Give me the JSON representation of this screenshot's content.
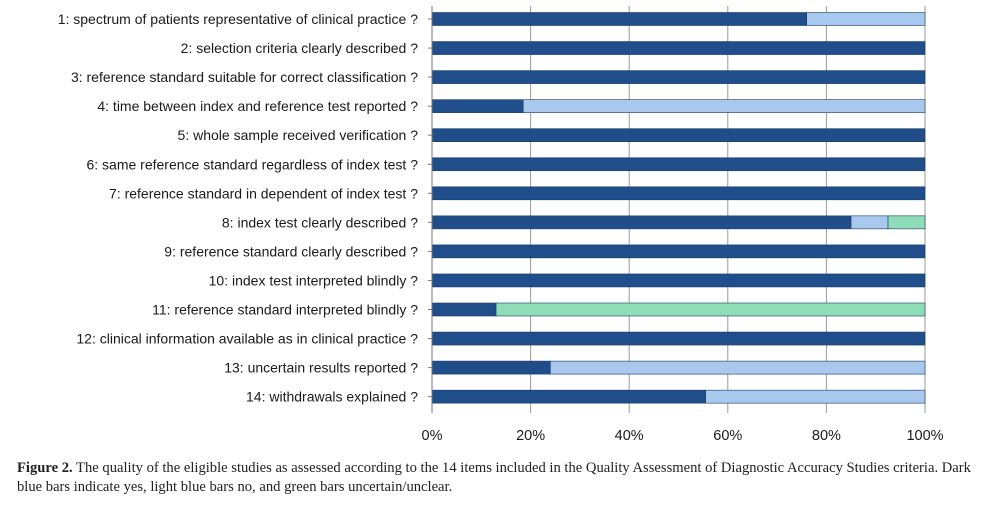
{
  "chart_data": {
    "type": "bar",
    "orientation": "horizontal",
    "stacked": true,
    "categories": [
      "1: spectrum of patients representative of clinical practice ?",
      "2: selection criteria clearly described ?",
      "3: reference standard suitable for correct classification ?",
      "4: time between index and reference test reported ?",
      "5: whole sample received verification ?",
      "6: same reference standard regardless of index test ?",
      "7: reference standard in dependent of index test ?",
      "8: index test clearly described ?",
      "9: reference standard clearly described ?",
      "10: index test interpreted blindly ?",
      "11: reference standard interpreted blindly ?",
      "12: clinical information available as in clinical practice ?",
      "13: uncertain results reported ?",
      "14: withdrawals explained ?"
    ],
    "series": [
      {
        "color": "#1f4e8a",
        "values": [
          76,
          100,
          100,
          18.5,
          100,
          100,
          100,
          85,
          100,
          100,
          13,
          100,
          24,
          55.5
        ]
      },
      {
        "color": "#a8c8ee",
        "values": [
          24,
          0,
          0,
          81.5,
          0,
          0,
          0,
          7.5,
          0,
          0,
          0,
          0,
          76,
          44.5
        ]
      },
      {
        "color": "#8fddb8",
        "values": [
          0,
          0,
          0,
          0,
          0,
          0,
          0,
          7.5,
          0,
          0,
          87,
          0,
          0,
          0
        ]
      }
    ],
    "xlim": [
      0,
      100
    ],
    "xticks": [
      "0%",
      "20%",
      "40%",
      "60%",
      "80%",
      "100%"
    ],
    "xlabel": "",
    "ylabel": "",
    "title": "",
    "grid": true,
    "legend": "none"
  },
  "caption": {
    "label": "Figure 2.",
    "text": " The quality of the eligible studies as assessed according to the 14 items included in the Quality Assessment of Diagnostic Accuracy Studies criteria. Dark blue bars indicate yes, light blue bars no, and green bars uncertain/unclear."
  }
}
